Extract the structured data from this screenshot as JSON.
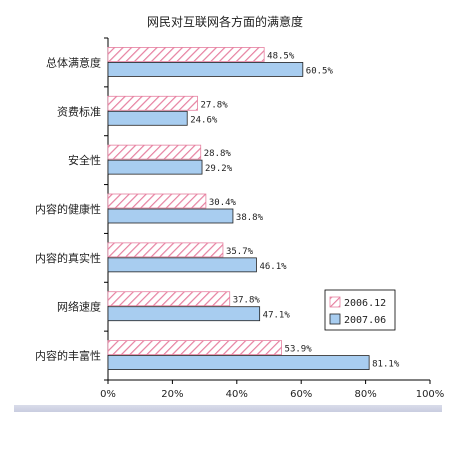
{
  "chart_data": {
    "type": "bar",
    "orientation": "horizontal",
    "title": "网民对互联网各方面的满意度",
    "categories": [
      "总体满意度",
      "资费标准",
      "安全性",
      "内容的健康性",
      "内容的真实性",
      "网络速度",
      "内容的丰富性"
    ],
    "series": [
      {
        "name": "2006.12",
        "values": [
          48.5,
          27.8,
          28.8,
          30.4,
          35.7,
          37.8,
          53.9
        ],
        "labels": [
          "48.5%",
          "27.8%",
          "28.8%",
          "30.4%",
          "35.7%",
          "37.8%",
          "53.9%"
        ],
        "color": "#ffffff",
        "hatch": "#e680a0"
      },
      {
        "name": "2007.06",
        "values": [
          60.5,
          24.6,
          29.2,
          38.8,
          46.1,
          47.1,
          81.1
        ],
        "labels": [
          "60.5%",
          "24.6%",
          "29.2%",
          "38.8%",
          "46.1%",
          "47.1%",
          "81.1%"
        ],
        "color": "#a8cdf0"
      }
    ],
    "xlim": [
      0,
      100
    ],
    "xticks": [
      "0%",
      "20%",
      "40%",
      "60%",
      "80%",
      "100%"
    ],
    "legend_position": "right",
    "grid": false
  }
}
